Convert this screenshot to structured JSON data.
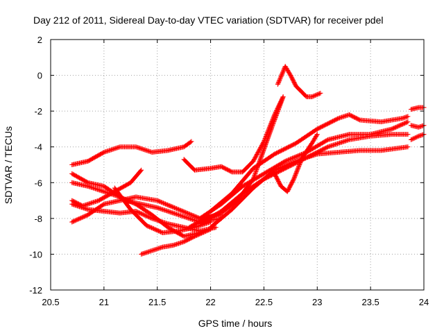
{
  "chart_data": {
    "type": "scatter",
    "title": "Day 212 of 2011, Sidereal Day-to-day VTEC variation (SDTVAR) for receiver pdel",
    "xlabel": "GPS time / hours",
    "ylabel": "SDTVAR / TECUs",
    "xlim": [
      20.5,
      24
    ],
    "ylim": [
      -12,
      2
    ],
    "xticks": [
      20.5,
      21,
      21.5,
      22,
      22.5,
      23,
      23.5,
      24
    ],
    "yticks": [
      -12,
      -10,
      -8,
      -6,
      -4,
      -2,
      0,
      2
    ],
    "xtick_labels": [
      "20.5",
      "21",
      "21.5",
      "22",
      "22.5",
      "23",
      "23.5",
      "24"
    ],
    "ytick_labels": [
      "-12",
      "-10",
      "-8",
      "-6",
      "-4",
      "-2",
      "0",
      "2"
    ],
    "grid": true,
    "marker": "+",
    "color": "#ff0000",
    "series": [
      {
        "x": [
          20.7,
          20.85,
          21.0,
          21.15,
          21.3,
          21.45,
          21.6,
          21.75,
          21.82
        ],
        "y": [
          -5.0,
          -4.8,
          -4.3,
          -4.0,
          -4.0,
          -4.3,
          -4.2,
          -4.0,
          -3.7
        ]
      },
      {
        "x": [
          21.75,
          21.85,
          22.0,
          22.1,
          22.2,
          22.3,
          22.4,
          22.5,
          22.6,
          22.68
        ],
        "y": [
          -4.7,
          -5.3,
          -5.2,
          -5.1,
          -5.4,
          -5.4,
          -4.8,
          -3.7,
          -2.2,
          -1.2
        ]
      },
      {
        "x": [
          20.7,
          20.85,
          21.0,
          21.2,
          21.35,
          21.5,
          21.7,
          21.9,
          22.1
        ],
        "y": [
          -5.5,
          -6.0,
          -6.2,
          -7.0,
          -7.2,
          -7.4,
          -7.8,
          -8.2,
          -8.0
        ]
      },
      {
        "x": [
          20.7,
          20.8,
          20.95,
          21.1,
          21.25,
          21.35
        ],
        "y": [
          -7.0,
          -7.3,
          -7.0,
          -6.5,
          -6.0,
          -5.3
        ]
      },
      {
        "x": [
          20.7,
          20.85,
          21.0,
          21.15,
          21.3,
          21.5,
          21.7,
          21.9,
          22.1
        ],
        "y": [
          -8.2,
          -7.8,
          -7.2,
          -7.0,
          -6.8,
          -7.0,
          -7.5,
          -8.0,
          -7.8
        ]
      },
      {
        "x": [
          20.7,
          20.85,
          21.0,
          21.15,
          21.3,
          21.45,
          21.6,
          21.75,
          21.9
        ],
        "y": [
          -6.0,
          -6.2,
          -6.5,
          -6.8,
          -7.2,
          -7.8,
          -8.5,
          -9.0,
          -8.8
        ]
      },
      {
        "x": [
          20.7,
          20.85,
          21.0,
          21.15,
          21.3,
          21.45,
          21.6,
          21.75,
          21.9,
          22.05
        ],
        "y": [
          -7.2,
          -7.5,
          -7.6,
          -7.7,
          -7.6,
          -8.0,
          -8.3,
          -8.5,
          -8.7,
          -8.5
        ]
      },
      {
        "x": [
          21.1,
          21.25,
          21.4,
          21.55,
          21.7,
          21.85,
          22.0
        ],
        "y": [
          -6.3,
          -7.5,
          -8.4,
          -8.8,
          -8.7,
          -8.5,
          -8.2
        ]
      },
      {
        "x": [
          21.35,
          21.45,
          21.55,
          21.65,
          21.75,
          21.85,
          22.0
        ],
        "y": [
          -10.0,
          -9.8,
          -9.6,
          -9.5,
          -9.3,
          -9.0,
          -8.6
        ]
      },
      {
        "x": [
          21.8,
          21.95,
          22.1,
          22.25,
          22.4,
          22.55,
          22.68
        ],
        "y": [
          -8.5,
          -8.0,
          -7.7,
          -7.0,
          -5.8,
          -3.3,
          -1.2
        ]
      },
      {
        "x": [
          21.9,
          22.1,
          22.3,
          22.5,
          22.7,
          22.9,
          23.1,
          23.3,
          23.5,
          23.7,
          23.85
        ],
        "y": [
          -8.3,
          -7.6,
          -6.6,
          -5.8,
          -5.2,
          -4.6,
          -4.0,
          -3.6,
          -3.4,
          -3.3,
          -3.3
        ]
      },
      {
        "x": [
          21.9,
          22.1,
          22.3,
          22.5,
          22.7,
          22.9,
          23.1,
          23.3,
          23.5,
          23.7,
          23.85
        ],
        "y": [
          -8.0,
          -7.2,
          -6.2,
          -5.5,
          -4.8,
          -4.3,
          -3.6,
          -3.3,
          -3.3,
          -3.0,
          -2.6
        ]
      },
      {
        "x": [
          22.0,
          22.2,
          22.4,
          22.6,
          22.8,
          23.0,
          23.2,
          23.3,
          23.4,
          23.6,
          23.8,
          23.85
        ],
        "y": [
          -7.6,
          -6.6,
          -5.2,
          -4.4,
          -3.8,
          -3.0,
          -2.4,
          -2.2,
          -2.5,
          -2.6,
          -2.4,
          -2.3
        ]
      },
      {
        "x": [
          22.0,
          22.2,
          22.4,
          22.6,
          22.8,
          23.0,
          23.2,
          23.4,
          23.6,
          23.85
        ],
        "y": [
          -8.5,
          -7.5,
          -6.3,
          -5.3,
          -4.8,
          -4.4,
          -4.3,
          -4.2,
          -4.2,
          -4.0
        ]
      },
      {
        "x": [
          22.6,
          22.66,
          22.72,
          22.78,
          22.86,
          22.95,
          23.0
        ],
        "y": [
          -5.5,
          -6.2,
          -6.5,
          -5.8,
          -4.6,
          -3.8,
          -3.3
        ]
      },
      {
        "x": [
          22.63,
          22.7,
          22.75,
          22.8,
          22.85,
          22.9,
          22.95,
          23.03
        ],
        "y": [
          -0.5,
          0.5,
          0.0,
          -0.6,
          -0.9,
          -1.2,
          -1.2,
          -1.0
        ]
      },
      {
        "x": [
          23.88,
          23.95,
          24.0
        ],
        "y": [
          -3.6,
          -3.4,
          -3.3
        ]
      },
      {
        "x": [
          23.88,
          23.95,
          24.0
        ],
        "y": [
          -2.8,
          -2.9,
          -2.8
        ]
      },
      {
        "x": [
          23.88,
          23.95,
          24.0
        ],
        "y": [
          -1.9,
          -1.8,
          -1.8
        ]
      }
    ]
  }
}
